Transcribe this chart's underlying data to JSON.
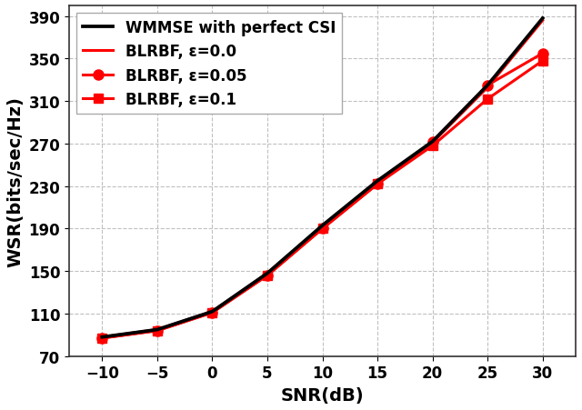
{
  "snr": [
    -10,
    -5,
    0,
    5,
    10,
    15,
    20,
    25,
    30
  ],
  "wmmse_perfect": [
    88,
    95,
    112,
    148,
    193,
    235,
    272,
    325,
    388
  ],
  "blrbf_eps0": [
    88,
    95,
    112,
    148,
    192,
    234,
    271,
    323,
    386
  ],
  "blrbf_eps005": [
    87,
    94,
    111,
    146,
    190,
    232,
    272,
    325,
    355
  ],
  "blrbf_eps01": [
    87,
    94,
    111,
    146,
    190,
    232,
    268,
    312,
    348
  ],
  "colors": {
    "wmmse": "#000000",
    "blrbf": "#ff0000"
  },
  "legend_labels": [
    "WMMSE with perfect CSI",
    "BLRBF, ε=0.0",
    "BLRBF, ε=0.05",
    "BLRBF, ε=0.1"
  ],
  "xlabel": "SNR(dB)",
  "ylabel": "WSR(bits/sec/Hz)",
  "xlim": [
    -13,
    33
  ],
  "ylim": [
    70,
    400
  ],
  "yticks": [
    70,
    110,
    150,
    190,
    230,
    270,
    310,
    350,
    390
  ],
  "xticks": [
    -10,
    -5,
    0,
    5,
    10,
    15,
    20,
    25,
    30
  ],
  "axis_fontsize": 14,
  "tick_fontsize": 12,
  "legend_fontsize": 12,
  "linewidth": 2.2,
  "markersize": 8,
  "bg_color": "#ffffff",
  "plot_bg_color": "#ffffff"
}
